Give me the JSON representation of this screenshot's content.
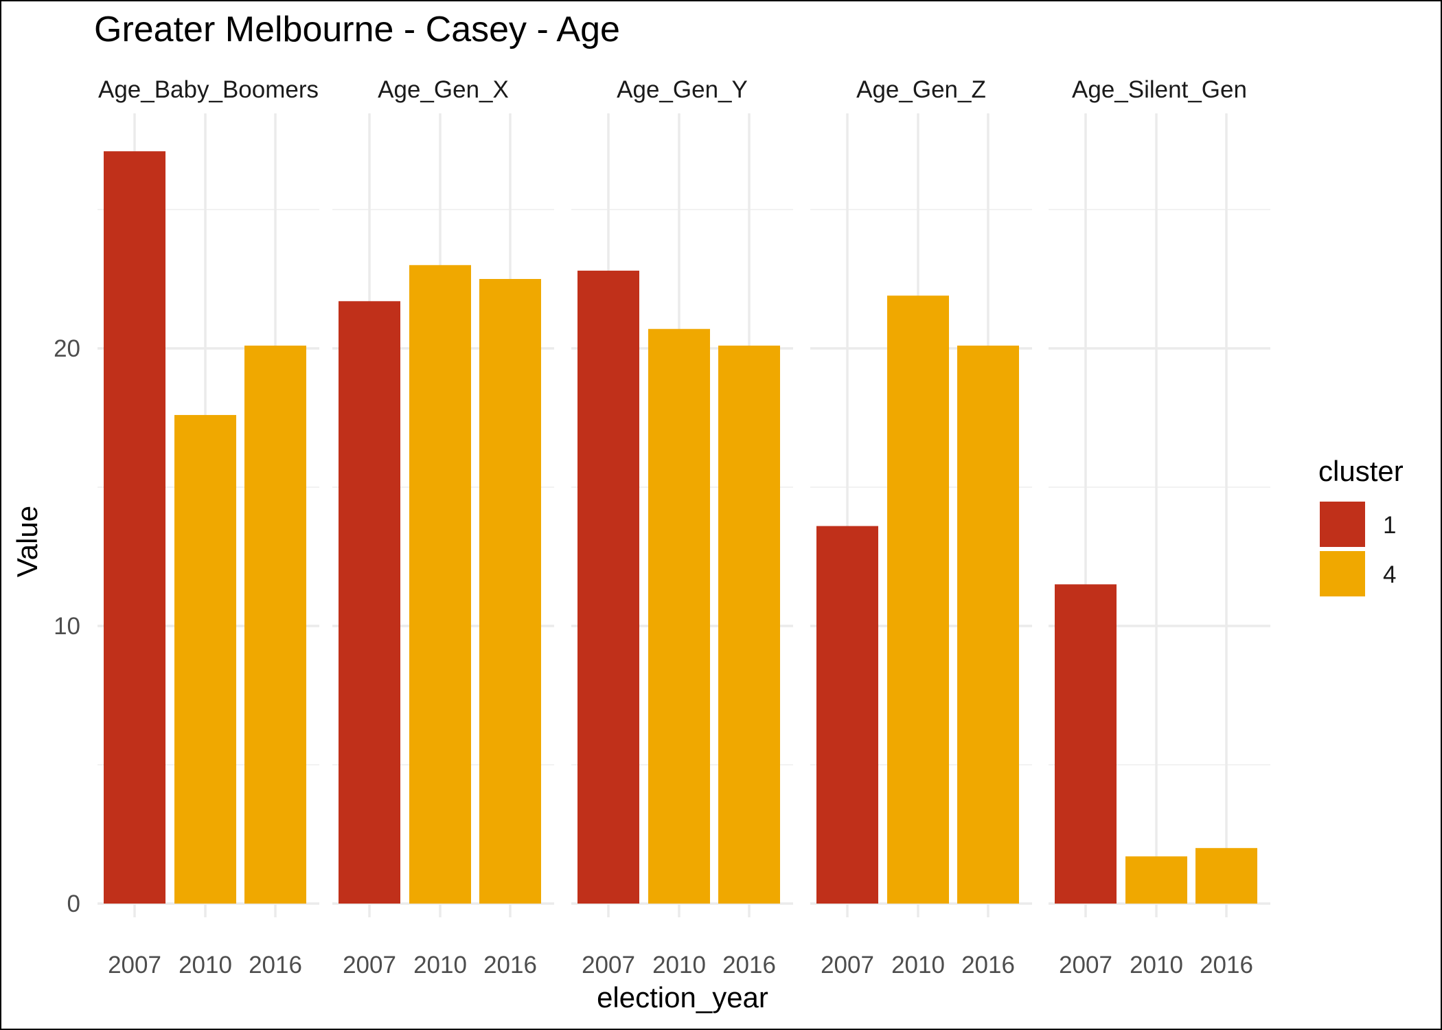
{
  "chart_data": {
    "type": "bar",
    "title": "Greater Melbourne - Casey - Age",
    "xlabel": "election_year",
    "ylabel": "Value",
    "ylim": [
      0,
      28.5
    ],
    "yticks": [
      0,
      10,
      20
    ],
    "grid": true,
    "legend_position": "right",
    "categories": [
      "2007",
      "2010",
      "2016"
    ],
    "legend": {
      "title": "cluster",
      "entries": [
        {
          "label": "1",
          "color": "#C0301A"
        },
        {
          "label": "4",
          "color": "#F0A800"
        }
      ]
    },
    "facets": [
      {
        "name": "Age_Baby_Boomers",
        "values": [
          27.1,
          17.6,
          20.1
        ],
        "clusters": [
          "1",
          "4",
          "4"
        ]
      },
      {
        "name": "Age_Gen_X",
        "values": [
          21.7,
          23.0,
          22.5
        ],
        "clusters": [
          "1",
          "4",
          "4"
        ]
      },
      {
        "name": "Age_Gen_Y",
        "values": [
          22.8,
          20.7,
          20.1
        ],
        "clusters": [
          "1",
          "4",
          "4"
        ]
      },
      {
        "name": "Age_Gen_Z",
        "values": [
          13.6,
          21.9,
          20.1
        ],
        "clusters": [
          "1",
          "4",
          "4"
        ]
      },
      {
        "name": "Age_Silent_Gen",
        "values": [
          11.5,
          1.7,
          2.0
        ],
        "clusters": [
          "1",
          "4",
          "4"
        ]
      }
    ]
  }
}
